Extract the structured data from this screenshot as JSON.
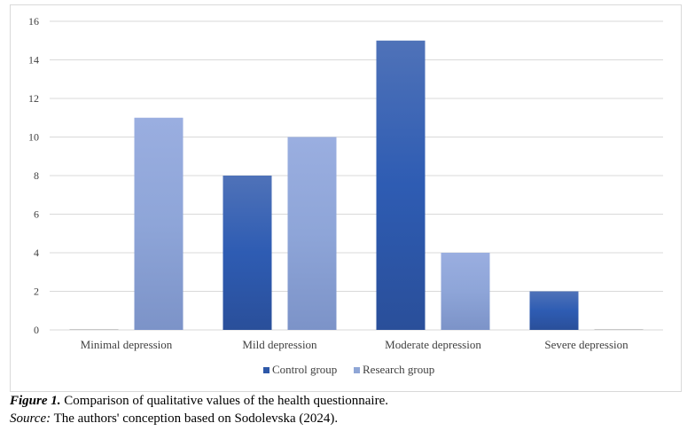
{
  "chart_data": {
    "type": "bar",
    "categories": [
      "Minimal depression",
      "Mild depression",
      "Moderate depression",
      "Severe depression"
    ],
    "series": [
      {
        "name": "Control group",
        "values": [
          0,
          8,
          15,
          2
        ]
      },
      {
        "name": "Research group",
        "values": [
          11,
          10,
          4,
          0
        ]
      }
    ],
    "ylim": [
      0,
      16
    ],
    "yticks": [
      0,
      2,
      4,
      6,
      8,
      10,
      12,
      14,
      16
    ],
    "grid": true,
    "legend_position": "bottom",
    "colors": {
      "Control group": "#2e58a8",
      "Research group": "#8fa6d6"
    }
  },
  "caption": {
    "figure_label": "Figure 1.",
    "figure_text": "Comparison of qualitative values of the health questionnaire.",
    "source_label": "Source:",
    "source_text": "The authors' conception based on Sodolevska (2024)."
  }
}
